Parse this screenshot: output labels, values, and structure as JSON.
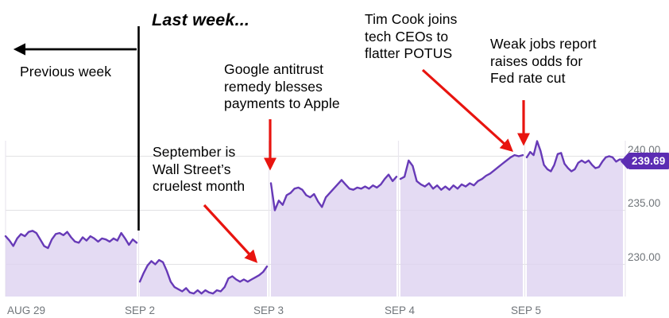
{
  "chart_data": {
    "type": "area",
    "title": "Last week...",
    "last_price_label": "239.69",
    "x_tick_labels": [
      "AUG 29",
      "SEP 2",
      "SEP 3",
      "SEP 4",
      "SEP 5"
    ],
    "y_tick_labels": [
      "240.00",
      "235.00",
      "230.00"
    ],
    "y_ticks": [
      240,
      235,
      230
    ],
    "ylim": [
      226.5,
      241.5
    ],
    "grid": true,
    "legend_position": "none",
    "line_color": "#673ab7",
    "fill_color": "#ded3f0",
    "badge_color": "#5c2db3",
    "arrow_red": "#e8140f",
    "series": [
      {
        "name": "AUG 29",
        "values": [
          232.6,
          232.2,
          231.7,
          232.4,
          232.8,
          232.6,
          233.0,
          233.1,
          232.9,
          232.3,
          231.7,
          231.5,
          232.3,
          232.8,
          232.9,
          232.7,
          233.0,
          232.5,
          232.1,
          232.0,
          232.5,
          232.2,
          232.6,
          232.4,
          232.1,
          232.4,
          232.3,
          232.1,
          232.4,
          232.2,
          232.9,
          232.4,
          231.8,
          232.3,
          232.0
        ]
      },
      {
        "name": "SEP 2",
        "values": [
          228.4,
          229.2,
          229.9,
          230.3,
          230.0,
          230.4,
          230.2,
          229.4,
          228.4,
          227.9,
          227.7,
          227.5,
          227.8,
          227.4,
          227.3,
          227.6,
          227.3,
          227.6,
          227.4,
          227.3,
          227.6,
          227.5,
          227.9,
          228.7,
          228.9,
          228.6,
          228.4,
          228.6,
          228.4,
          228.6,
          228.8,
          229.0,
          229.3,
          229.8
        ]
      },
      {
        "name": "SEP 3",
        "values": [
          237.5,
          235.0,
          235.9,
          235.5,
          236.4,
          236.6,
          237.0,
          237.1,
          236.9,
          236.4,
          236.2,
          236.5,
          235.8,
          235.3,
          236.2,
          236.6,
          237.0,
          237.4,
          237.8,
          237.4,
          237.0,
          236.9,
          237.1,
          237.0,
          237.2,
          237.0,
          237.3,
          237.1,
          237.4,
          237.9,
          238.3,
          237.7,
          238.1
        ]
      },
      {
        "name": "SEP 4",
        "values": [
          237.9,
          238.1,
          239.6,
          239.1,
          237.7,
          237.4,
          237.2,
          237.5,
          237.0,
          237.3,
          236.9,
          237.2,
          236.9,
          237.3,
          237.0,
          237.4,
          237.2,
          237.5,
          237.3,
          237.7,
          237.9,
          238.2,
          238.4,
          238.7,
          239.0,
          239.3,
          239.6,
          239.9,
          240.1,
          240.0,
          240.1
        ]
      },
      {
        "name": "SEP 5",
        "values": [
          239.9,
          240.4,
          240.1,
          241.4,
          240.5,
          239.2,
          238.8,
          238.6,
          239.2,
          240.2,
          240.3,
          239.3,
          238.9,
          238.6,
          238.8,
          239.4,
          239.6,
          239.4,
          239.6,
          239.2,
          238.9,
          239.0,
          239.5,
          239.9,
          240.0,
          239.9,
          239.5,
          239.7,
          239.69
        ]
      }
    ]
  },
  "annotations": {
    "last_week": "Last week...",
    "previous_week": "Previous week",
    "september": "September is\nWall Street’s\ncruelest month",
    "google": "Google antitrust\nremedy blesses\npayments to Apple",
    "tim_cook": "Tim Cook joins\ntech CEOs to\nflatter POTUS",
    "jobs": "Weak jobs report\nraises odds for\nFed rate cut"
  }
}
